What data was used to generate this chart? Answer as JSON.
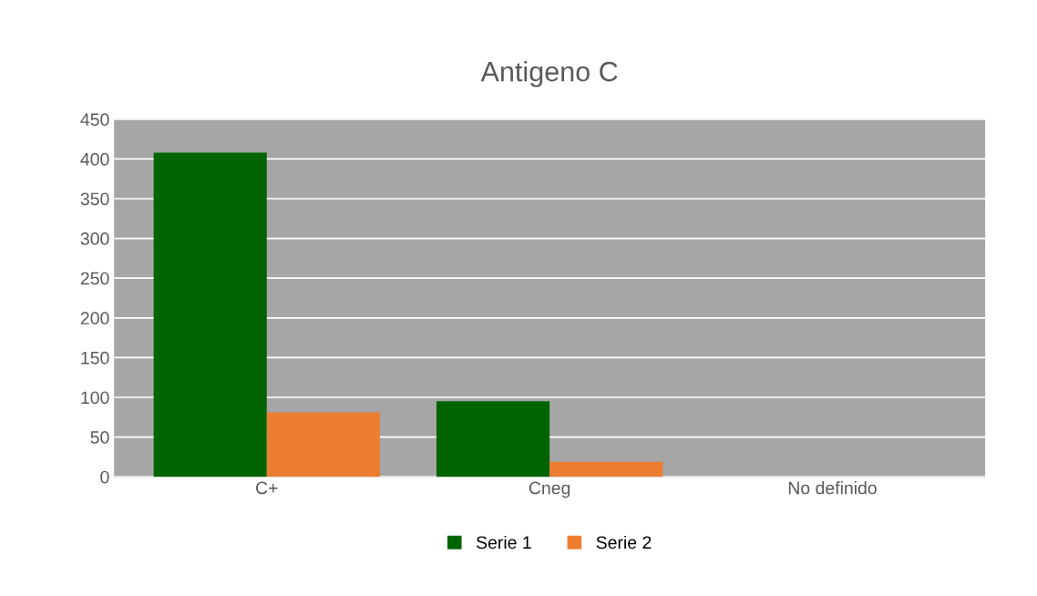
{
  "chart_data": {
    "type": "bar",
    "title": "Antigeno C",
    "categories": [
      "C+",
      "Cneg",
      "No definido"
    ],
    "series": [
      {
        "name": "Serie 1",
        "color": "#006400",
        "values": [
          408,
          95,
          0
        ]
      },
      {
        "name": "Serie 2",
        "color": "#ed7d31",
        "values": [
          81,
          19,
          0
        ]
      }
    ],
    "ylim": [
      0,
      450
    ],
    "yticks": [
      0,
      50,
      100,
      150,
      200,
      250,
      300,
      350,
      400,
      450
    ],
    "grid": "y",
    "legend": "bottom"
  }
}
